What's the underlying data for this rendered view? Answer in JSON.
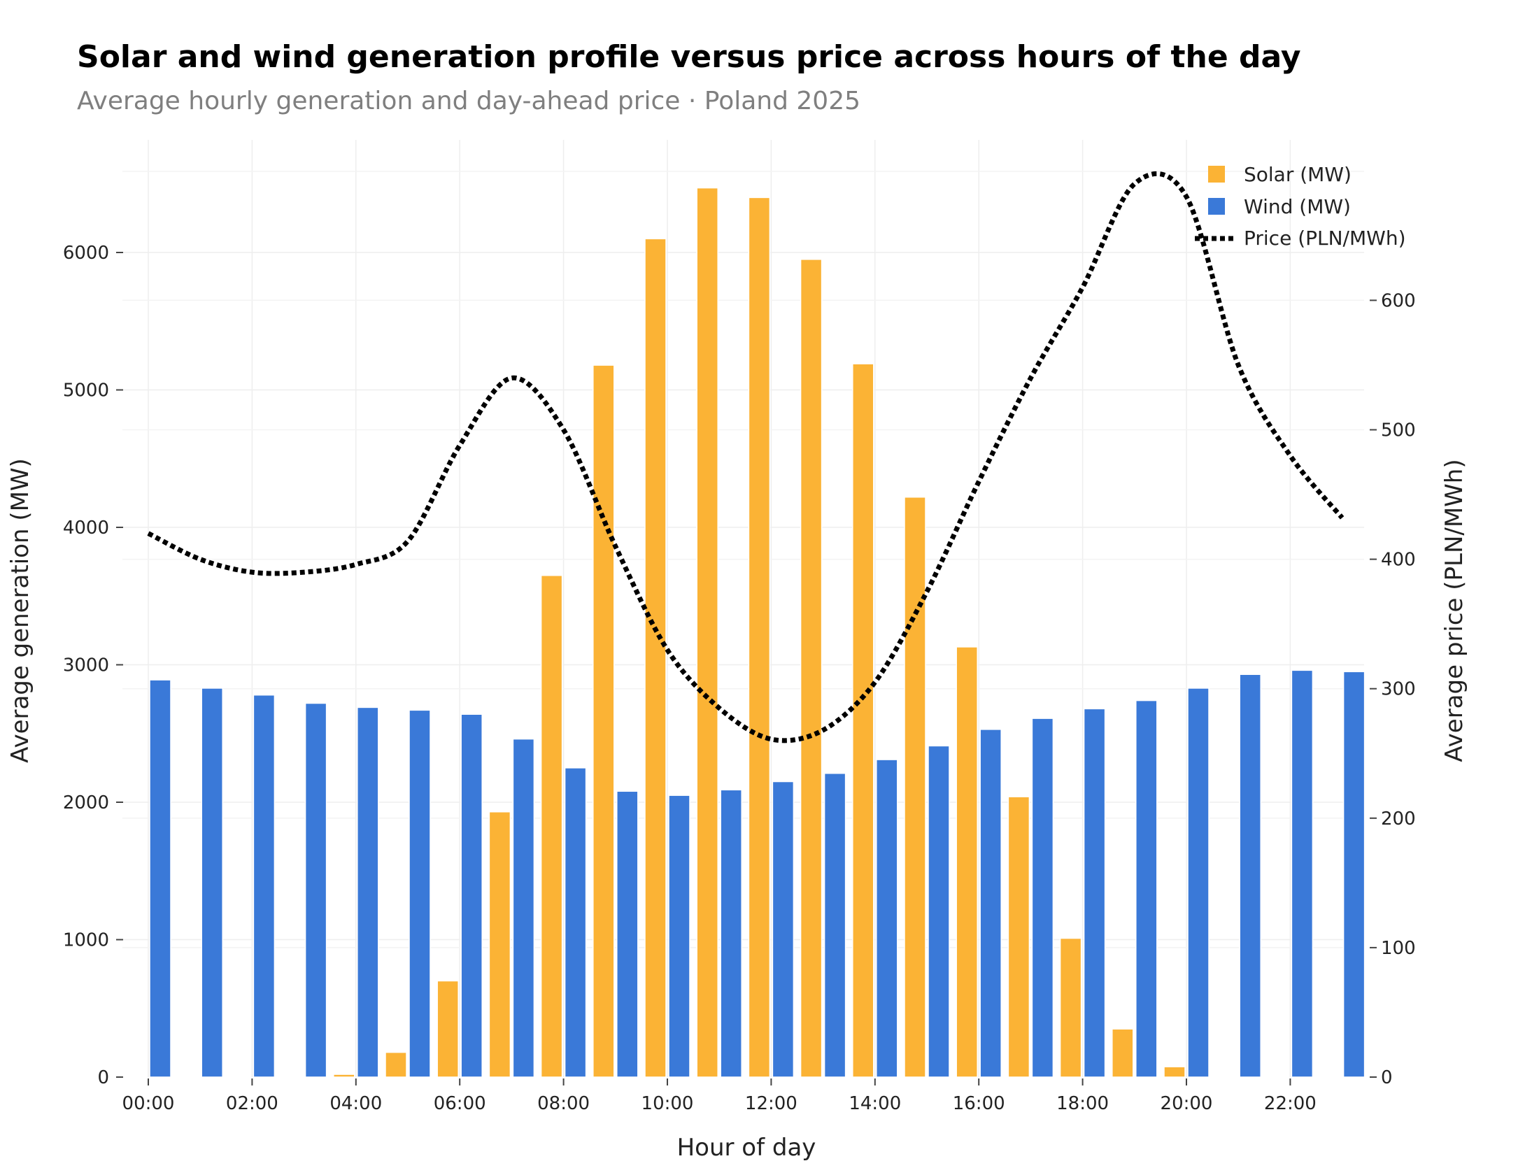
{
  "chart_data": {
    "type": "bar",
    "title": "Solar and wind generation profile versus price across hours of the day",
    "subtitle": "Average hourly generation and day-ahead price · Poland 2025",
    "xlabel": "Hour of day",
    "ylabel_left": "Average generation (MW)",
    "ylabel_right": "Average price (PLN/MWh)",
    "categories": [
      "00:00",
      "01:00",
      "02:00",
      "03:00",
      "04:00",
      "05:00",
      "06:00",
      "07:00",
      "08:00",
      "09:00",
      "10:00",
      "11:00",
      "12:00",
      "13:00",
      "14:00",
      "15:00",
      "16:00",
      "17:00",
      "18:00",
      "19:00",
      "20:00",
      "21:00",
      "22:00",
      "23:00"
    ],
    "x_tick_labels": [
      "00:00",
      "02:00",
      "04:00",
      "06:00",
      "08:00",
      "10:00",
      "12:00",
      "14:00",
      "16:00",
      "18:00",
      "20:00",
      "22:00"
    ],
    "ylim_left": [
      0,
      6800
    ],
    "left_ticks": [
      0,
      1000,
      2000,
      3000,
      4000,
      5000,
      6000
    ],
    "ylim_right": [
      0,
      722
    ],
    "right_ticks": [
      0,
      100,
      200,
      300,
      400,
      500,
      600
    ],
    "grid": true,
    "legend_position": "top-right",
    "series": [
      {
        "name": "Solar (MW)",
        "type": "bar",
        "axis": "left",
        "color": "#FBB335",
        "values": [
          0,
          0,
          0,
          0,
          20,
          180,
          700,
          1930,
          3650,
          5180,
          6100,
          6470,
          6400,
          5950,
          5190,
          4220,
          3130,
          2040,
          1010,
          350,
          75,
          0,
          0,
          0
        ]
      },
      {
        "name": "Wind (MW)",
        "type": "bar",
        "axis": "left",
        "color": "#3A79D8",
        "values": [
          2890,
          2830,
          2780,
          2720,
          2690,
          2670,
          2640,
          2460,
          2250,
          2080,
          2050,
          2090,
          2150,
          2210,
          2310,
          2410,
          2530,
          2610,
          2680,
          2740,
          2830,
          2930,
          2960,
          2950
        ]
      },
      {
        "name": "Price (PLN/MWh)",
        "type": "line",
        "axis": "right",
        "color": "#000000",
        "dash": "dot",
        "values": [
          420,
          400,
          390,
          390,
          396,
          414,
          488,
          540,
          500,
          410,
          330,
          285,
          261,
          268,
          305,
          375,
          460,
          540,
          610,
          690,
          680,
          550,
          480,
          432
        ]
      }
    ]
  }
}
